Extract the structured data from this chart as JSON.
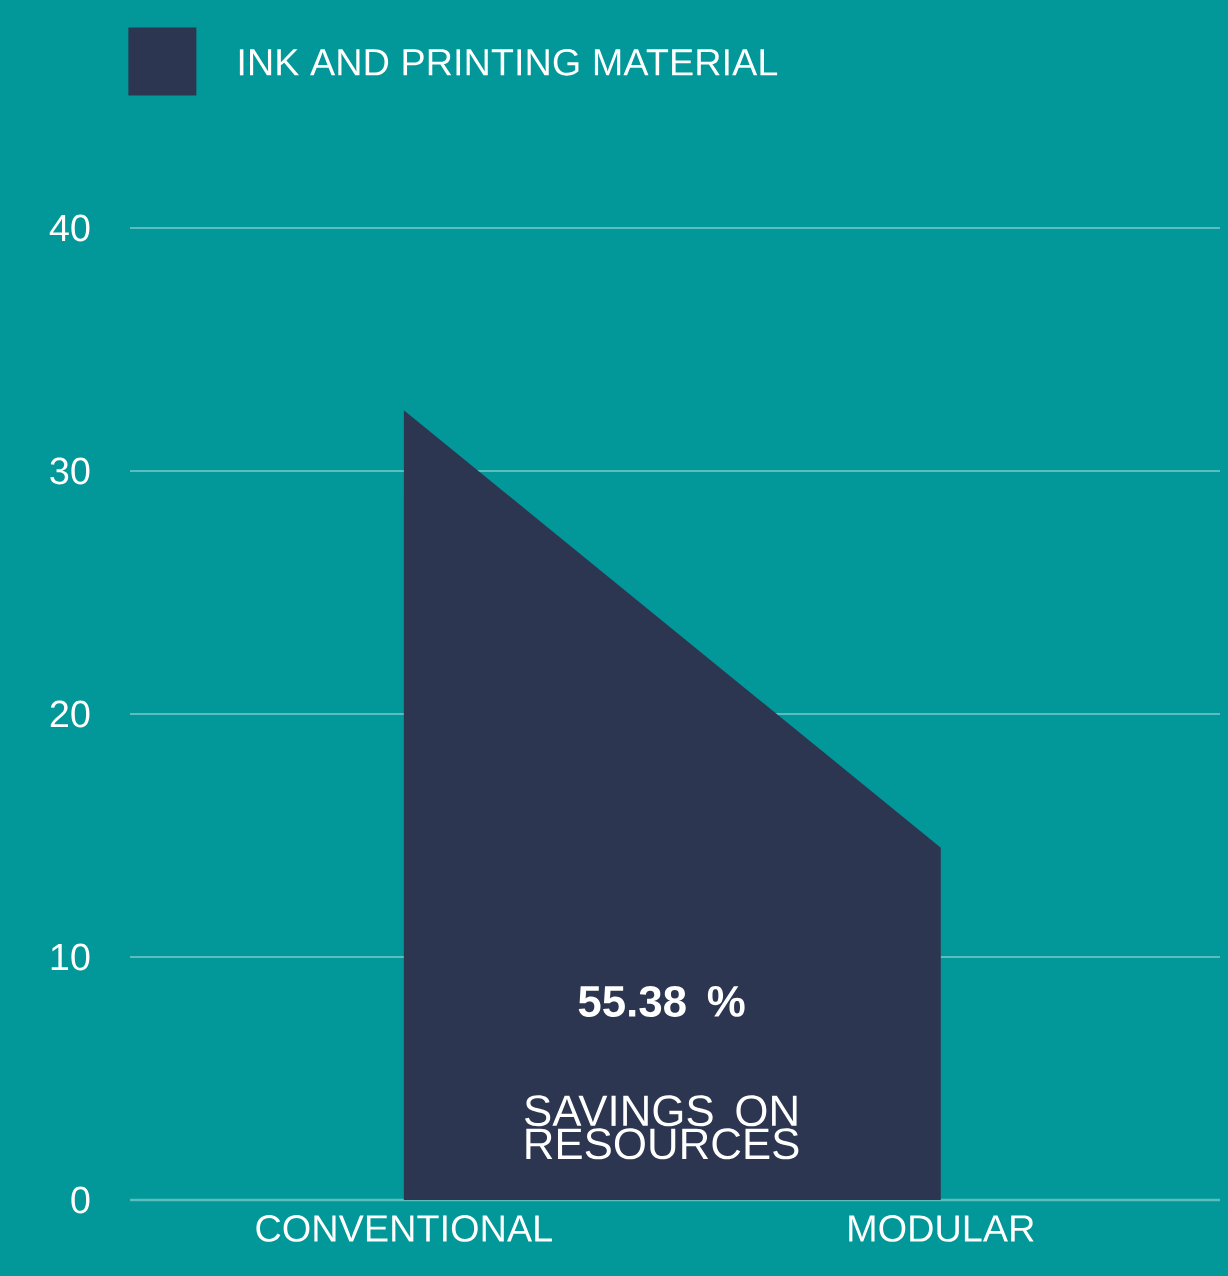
{
  "chart_data": {
    "type": "area",
    "categories": [
      "CONVENTIONAL",
      "MODULAR"
    ],
    "series": [
      {
        "name": "INK AND PRINTING MATERIAL",
        "color": "#2d3651",
        "values": [
          32.5,
          14.5
        ]
      }
    ],
    "ylim": [
      0,
      40
    ],
    "yticks": [
      0,
      10,
      20,
      30,
      40
    ],
    "grid": "y",
    "legend": "top left",
    "annotations": [
      "55.38 %",
      "SAVINGS ON RESOURCES"
    ]
  }
}
